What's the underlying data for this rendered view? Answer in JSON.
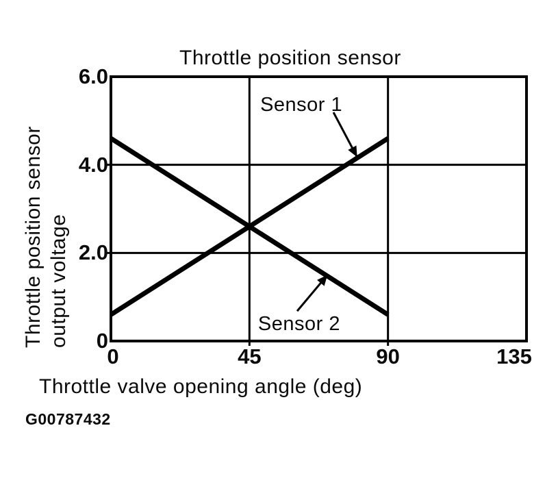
{
  "figure": {
    "id_label": "G00787432"
  },
  "chart_data": {
    "type": "line",
    "title": "Throttle position sensor",
    "xlabel": "Throttle valve opening angle (deg)",
    "ylabel": "Throttle position sensor output voltage",
    "ylabel_lines": [
      "Throttle position sensor",
      "output voltage"
    ],
    "xlim": [
      0,
      135
    ],
    "ylim": [
      0,
      6.0
    ],
    "xticks": [
      {
        "value": 0,
        "label": "0"
      },
      {
        "value": 45,
        "label": "45"
      },
      {
        "value": 90,
        "label": "90"
      },
      {
        "value": 135,
        "label": "135"
      }
    ],
    "yticks": [
      {
        "value": 0,
        "label": "0"
      },
      {
        "value": 2.0,
        "label": "2.0"
      },
      {
        "value": 4.0,
        "label": "4.0"
      },
      {
        "value": 6.0,
        "label": "6.0"
      }
    ],
    "grid": {
      "on": true,
      "x_gridlines": [
        45,
        90
      ],
      "y_gridlines": [
        2.0,
        4.0
      ]
    },
    "series": [
      {
        "name": "Sensor 1",
        "x": [
          0,
          90
        ],
        "y": [
          0.6,
          4.6
        ]
      },
      {
        "name": "Sensor 2",
        "x": [
          0,
          90
        ],
        "y": [
          4.6,
          0.6
        ]
      }
    ],
    "annotations": [
      {
        "text": "Sensor 1",
        "text_xy": [
          48.5,
          5.61
        ],
        "arrow_from": [
          72.3,
          5.19
        ],
        "arrow_to": [
          79.8,
          4.2
        ]
      },
      {
        "text": "Sensor 2",
        "text_xy": [
          47.8,
          0.64
        ],
        "arrow_from": [
          60.5,
          0.68
        ],
        "arrow_to": [
          70.1,
          1.48
        ]
      }
    ],
    "legend_position": "none",
    "line_color": "#000000",
    "background": "#ffffff"
  }
}
